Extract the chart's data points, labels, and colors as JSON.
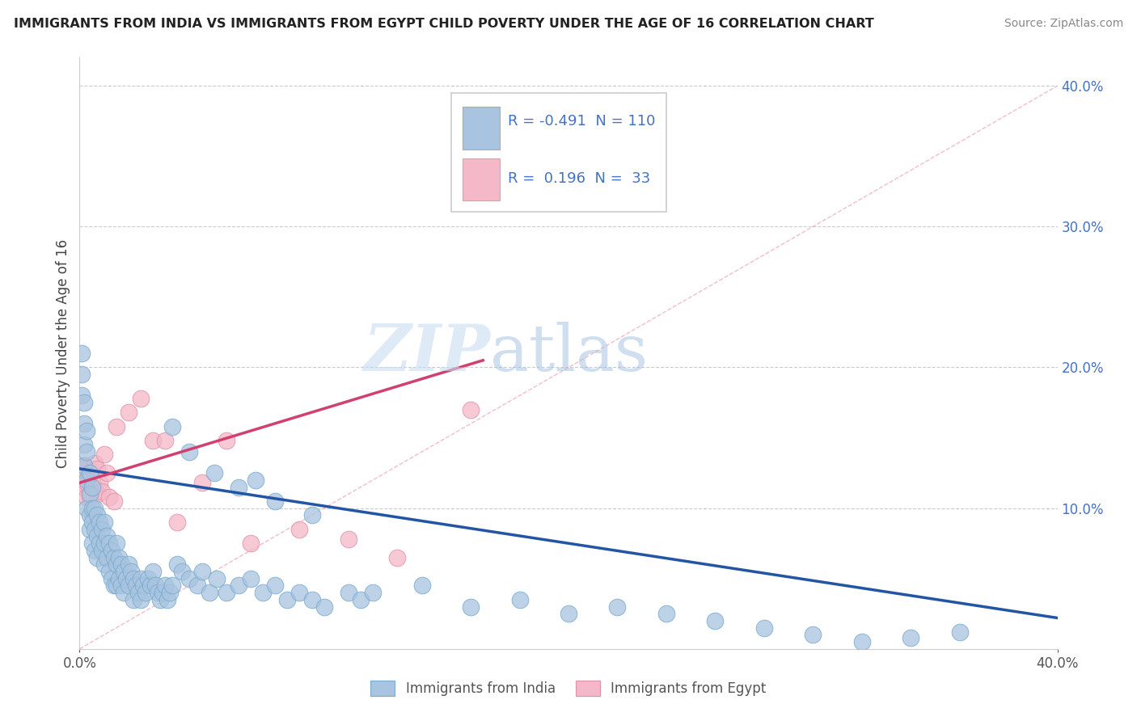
{
  "title": "IMMIGRANTS FROM INDIA VS IMMIGRANTS FROM EGYPT CHILD POVERTY UNDER THE AGE OF 16 CORRELATION CHART",
  "source": "Source: ZipAtlas.com",
  "ylabel": "Child Poverty Under the Age of 16",
  "xlim": [
    0.0,
    0.4
  ],
  "ylim": [
    0.0,
    0.42
  ],
  "yticks": [
    0.0,
    0.1,
    0.2,
    0.3,
    0.4
  ],
  "ytick_labels": [
    "",
    "10.0%",
    "20.0%",
    "30.0%",
    "40.0%"
  ],
  "india_color": "#a8c4e0",
  "india_edge_color": "#7aaacf",
  "india_line_color": "#2255a4",
  "egypt_color": "#f4b8c8",
  "egypt_edge_color": "#e090a8",
  "egypt_line_color": "#d04070",
  "india_R": -0.491,
  "india_N": 110,
  "egypt_R": 0.196,
  "egypt_N": 33,
  "watermark_zip": "ZIP",
  "watermark_atlas": "atlas",
  "legend_label_india": "Immigrants from India",
  "legend_label_egypt": "Immigrants from Egypt",
  "background_color": "#ffffff",
  "india_line_x0": 0.0,
  "india_line_y0": 0.128,
  "india_line_x1": 0.4,
  "india_line_y1": 0.022,
  "egypt_line_x0": 0.0,
  "egypt_line_y0": 0.118,
  "egypt_line_x1": 0.165,
  "egypt_line_y1": 0.205,
  "india_scatter_x": [
    0.001,
    0.001,
    0.001,
    0.002,
    0.002,
    0.002,
    0.002,
    0.003,
    0.003,
    0.003,
    0.003,
    0.004,
    0.004,
    0.004,
    0.004,
    0.005,
    0.005,
    0.005,
    0.005,
    0.006,
    0.006,
    0.006,
    0.007,
    0.007,
    0.007,
    0.008,
    0.008,
    0.009,
    0.009,
    0.01,
    0.01,
    0.01,
    0.011,
    0.011,
    0.012,
    0.012,
    0.013,
    0.013,
    0.014,
    0.014,
    0.015,
    0.015,
    0.015,
    0.016,
    0.016,
    0.017,
    0.017,
    0.018,
    0.018,
    0.019,
    0.02,
    0.02,
    0.021,
    0.022,
    0.022,
    0.023,
    0.024,
    0.025,
    0.025,
    0.026,
    0.027,
    0.028,
    0.029,
    0.03,
    0.031,
    0.032,
    0.033,
    0.034,
    0.035,
    0.036,
    0.037,
    0.038,
    0.04,
    0.042,
    0.045,
    0.048,
    0.05,
    0.053,
    0.056,
    0.06,
    0.065,
    0.07,
    0.075,
    0.08,
    0.085,
    0.09,
    0.095,
    0.1,
    0.11,
    0.115,
    0.12,
    0.14,
    0.16,
    0.18,
    0.2,
    0.22,
    0.24,
    0.26,
    0.28,
    0.3,
    0.32,
    0.34,
    0.36,
    0.038,
    0.045,
    0.055,
    0.065,
    0.072,
    0.08,
    0.095
  ],
  "india_scatter_y": [
    0.195,
    0.21,
    0.18,
    0.175,
    0.145,
    0.16,
    0.13,
    0.155,
    0.14,
    0.12,
    0.1,
    0.125,
    0.11,
    0.095,
    0.085,
    0.115,
    0.1,
    0.09,
    0.075,
    0.1,
    0.085,
    0.07,
    0.095,
    0.08,
    0.065,
    0.09,
    0.075,
    0.085,
    0.07,
    0.09,
    0.075,
    0.06,
    0.08,
    0.065,
    0.075,
    0.055,
    0.07,
    0.05,
    0.065,
    0.045,
    0.075,
    0.06,
    0.045,
    0.065,
    0.05,
    0.06,
    0.045,
    0.055,
    0.04,
    0.05,
    0.06,
    0.045,
    0.055,
    0.05,
    0.035,
    0.045,
    0.04,
    0.05,
    0.035,
    0.045,
    0.04,
    0.05,
    0.045,
    0.055,
    0.045,
    0.04,
    0.035,
    0.04,
    0.045,
    0.035,
    0.04,
    0.045,
    0.06,
    0.055,
    0.05,
    0.045,
    0.055,
    0.04,
    0.05,
    0.04,
    0.045,
    0.05,
    0.04,
    0.045,
    0.035,
    0.04,
    0.035,
    0.03,
    0.04,
    0.035,
    0.04,
    0.045,
    0.03,
    0.035,
    0.025,
    0.03,
    0.025,
    0.02,
    0.015,
    0.01,
    0.005,
    0.008,
    0.012,
    0.158,
    0.14,
    0.125,
    0.115,
    0.12,
    0.105,
    0.095
  ],
  "egypt_scatter_x": [
    0.001,
    0.001,
    0.002,
    0.002,
    0.003,
    0.003,
    0.004,
    0.004,
    0.005,
    0.005,
    0.006,
    0.006,
    0.007,
    0.007,
    0.008,
    0.009,
    0.01,
    0.011,
    0.012,
    0.014,
    0.015,
    0.02,
    0.025,
    0.03,
    0.035,
    0.04,
    0.05,
    0.06,
    0.07,
    0.09,
    0.11,
    0.13,
    0.16
  ],
  "egypt_scatter_y": [
    0.118,
    0.128,
    0.115,
    0.13,
    0.118,
    0.108,
    0.125,
    0.108,
    0.118,
    0.095,
    0.132,
    0.115,
    0.128,
    0.11,
    0.118,
    0.112,
    0.138,
    0.125,
    0.108,
    0.105,
    0.158,
    0.168,
    0.178,
    0.148,
    0.148,
    0.09,
    0.118,
    0.148,
    0.075,
    0.085,
    0.078,
    0.065,
    0.17
  ]
}
